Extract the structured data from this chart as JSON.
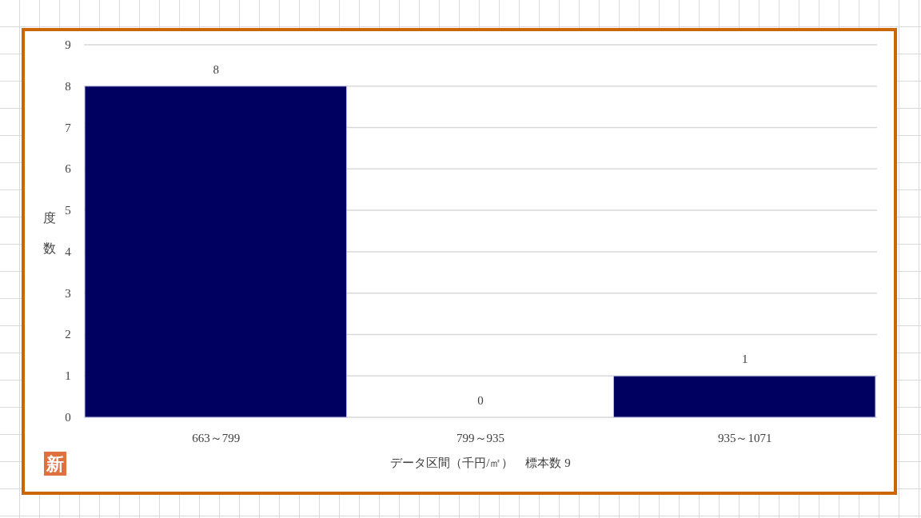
{
  "chart_data": {
    "type": "bar",
    "xlabel": "データ区間（千円/㎡）　標本数 9",
    "ylabel": "度数",
    "categories": [
      "663～799",
      "799～935",
      "935～1071"
    ],
    "values": [
      8,
      0,
      1
    ],
    "color": "#000060",
    "ylim": [
      0,
      9
    ],
    "yticks": [
      0,
      1,
      2,
      3,
      4,
      5,
      6,
      7,
      8,
      9
    ],
    "grid": "y",
    "data_labels": true,
    "annotations": [
      "新"
    ]
  }
}
